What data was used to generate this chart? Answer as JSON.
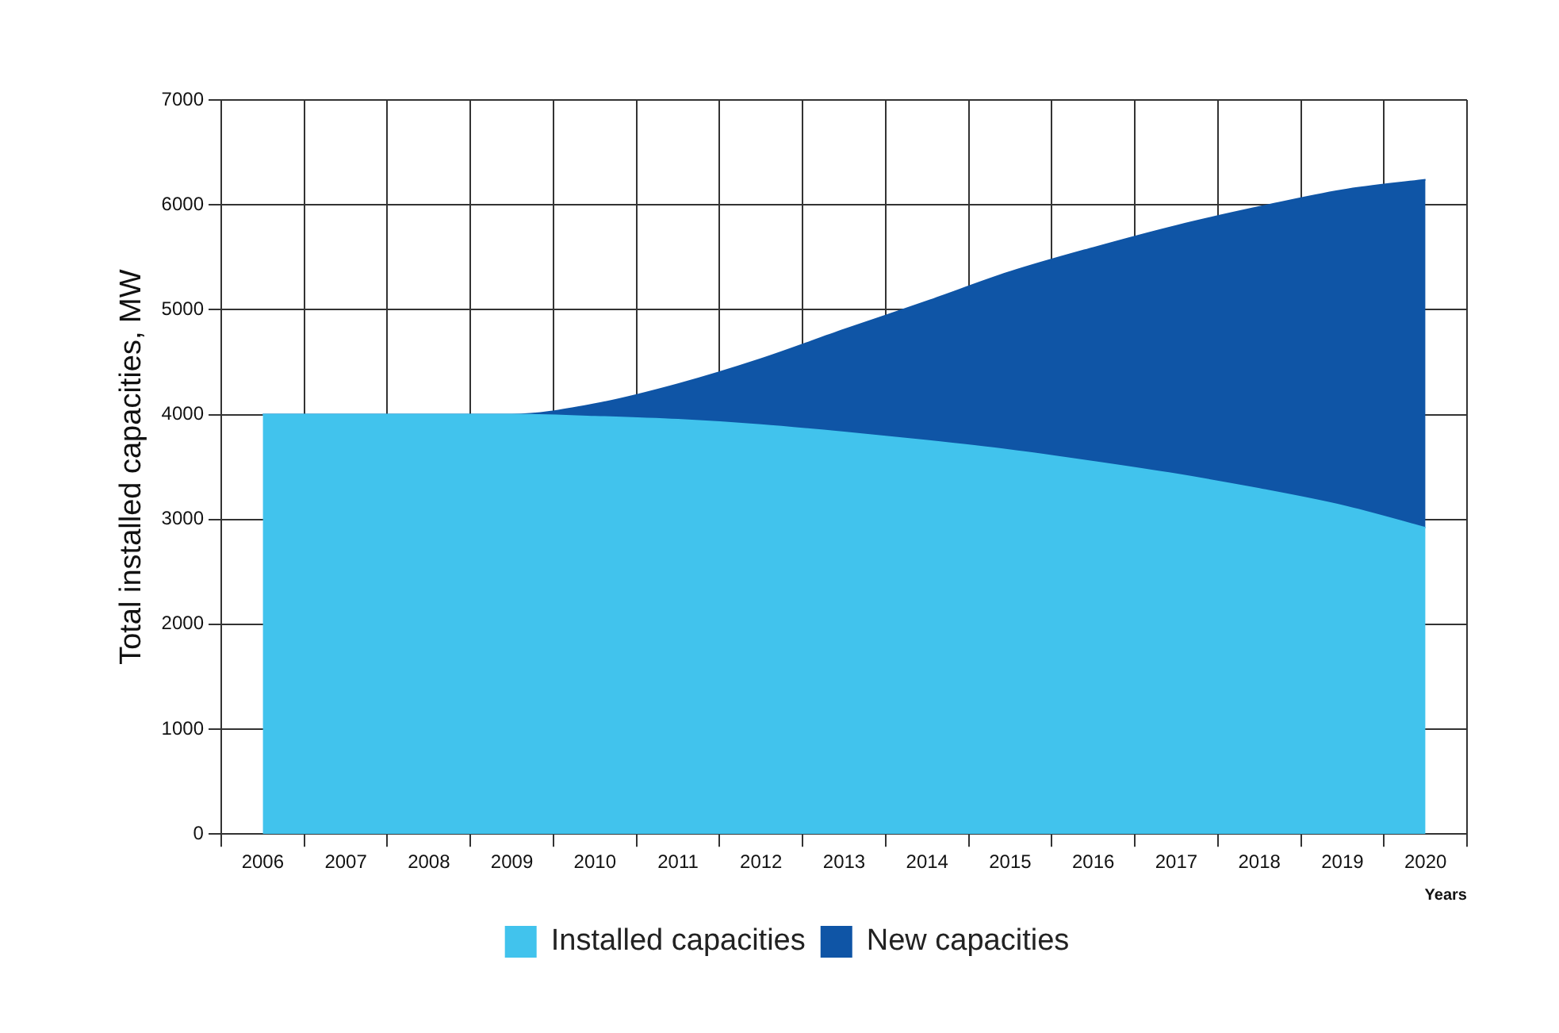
{
  "chart_data": {
    "type": "area",
    "stacked": true,
    "ylabel": "Total installed capacities, MW",
    "xlabel": "Years",
    "categories": [
      "2006",
      "2007",
      "2008",
      "2009",
      "2010",
      "2011",
      "2012",
      "2013",
      "2014",
      "2015",
      "2016",
      "2017",
      "2018",
      "2019",
      "2020"
    ],
    "series": [
      {
        "name": "Installed capacities",
        "color": "#41c3ed",
        "values": [
          4000,
          4000,
          4000,
          4000,
          3980,
          3950,
          3900,
          3830,
          3750,
          3660,
          3550,
          3430,
          3290,
          3130,
          2920
        ]
      },
      {
        "name": "New capacities",
        "color": "#0f55a6",
        "values": [
          0,
          0,
          0,
          0,
          120,
          340,
          630,
          980,
          1330,
          1700,
          2040,
          2370,
          2690,
          3010,
          3320
        ]
      }
    ],
    "ylim": [
      0,
      7000
    ],
    "yticks": [
      0,
      1000,
      2000,
      3000,
      4000,
      5000,
      6000,
      7000
    ],
    "grid": true,
    "legend": "bottom",
    "marker": "none"
  }
}
